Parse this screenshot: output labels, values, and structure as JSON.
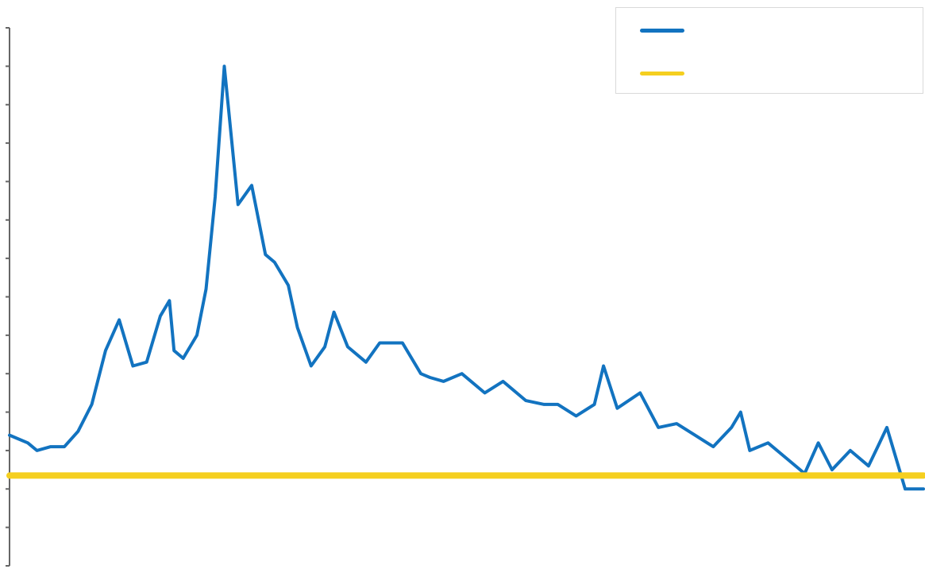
{
  "chart_data": {
    "type": "line",
    "title": "",
    "xlabel": "",
    "ylabel": "",
    "x_range": [
      0,
      1
    ],
    "ylim": [
      0,
      14
    ],
    "yticks": [
      0,
      1,
      2,
      3,
      4,
      5,
      6,
      7,
      8,
      9,
      10,
      11,
      12,
      13,
      14
    ],
    "grid": false,
    "legend_position": "top-right",
    "series": [
      {
        "name": "",
        "color": "#1273c0",
        "x": [
          0.0,
          0.02,
          0.03,
          0.045,
          0.06,
          0.075,
          0.09,
          0.105,
          0.12,
          0.135,
          0.15,
          0.165,
          0.175,
          0.18,
          0.19,
          0.205,
          0.215,
          0.225,
          0.235,
          0.25,
          0.265,
          0.28,
          0.29,
          0.305,
          0.315,
          0.33,
          0.345,
          0.355,
          0.37,
          0.39,
          0.405,
          0.43,
          0.45,
          0.46,
          0.475,
          0.495,
          0.52,
          0.54,
          0.565,
          0.585,
          0.6,
          0.62,
          0.64,
          0.65,
          0.665,
          0.69,
          0.71,
          0.73,
          0.75,
          0.77,
          0.79,
          0.8,
          0.81,
          0.83,
          0.85,
          0.87,
          0.885,
          0.9,
          0.92,
          0.94,
          0.95,
          0.96,
          0.97,
          0.98,
          0.99,
          1.0
        ],
        "values": [
          3.4,
          3.2,
          3.0,
          3.1,
          3.1,
          3.5,
          4.2,
          5.6,
          6.4,
          5.2,
          5.3,
          6.5,
          6.9,
          5.6,
          5.4,
          6.0,
          7.2,
          9.6,
          13.0,
          9.4,
          9.9,
          8.1,
          7.9,
          7.3,
          6.2,
          5.2,
          5.7,
          6.6,
          5.7,
          5.3,
          5.8,
          5.8,
          5.0,
          4.9,
          4.8,
          5.0,
          4.5,
          4.8,
          4.3,
          4.2,
          4.2,
          3.9,
          4.2,
          5.2,
          4.1,
          4.5,
          3.6,
          3.7,
          3.4,
          3.1,
          3.6,
          4.0,
          3.0,
          3.2,
          2.8,
          2.4,
          3.2,
          2.5,
          3.0,
          2.6,
          3.1,
          3.6,
          2.8,
          2.0,
          2.0,
          2.0
        ]
      },
      {
        "name": "",
        "color": "#f5cf1f",
        "x": [
          0.0,
          1.0
        ],
        "values": [
          2.35,
          2.35
        ]
      }
    ]
  }
}
